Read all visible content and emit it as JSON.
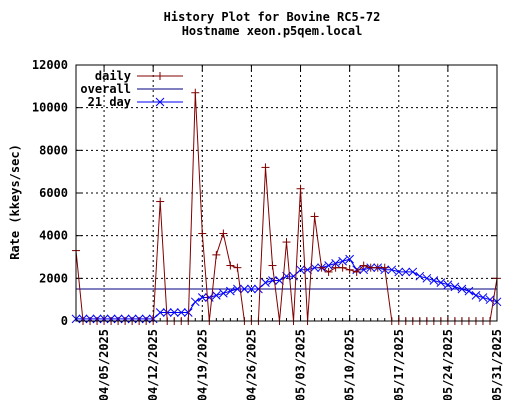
{
  "chart_data": {
    "type": "line",
    "title": "History Plot for Bovine RC5-72",
    "subtitle": "Hostname xeon.p5qem.local",
    "ylabel": "Rate (kkeys/sec)",
    "xlabel": "",
    "ylim": [
      0,
      12000
    ],
    "xlim": [
      "2025-04-01",
      "2025-05-31"
    ],
    "x_is_date": true,
    "grid": true,
    "legend_position": "top-left",
    "yticks": [
      0,
      2000,
      4000,
      6000,
      8000,
      10000,
      12000
    ],
    "xticks": [
      "04/05/2025",
      "04/12/2025",
      "04/19/2025",
      "04/26/2025",
      "05/03/2025",
      "05/10/2025",
      "05/17/2025",
      "05/24/2025",
      "05/31/2025"
    ],
    "colors": {
      "daily": "#800000",
      "overall": "#000080",
      "avg21": "#0000ff"
    },
    "series": [
      {
        "name": "daily",
        "marker": "plus",
        "x": [
          "2025-04-01",
          "2025-04-02",
          "2025-04-03",
          "2025-04-04",
          "2025-04-05",
          "2025-04-06",
          "2025-04-07",
          "2025-04-08",
          "2025-04-09",
          "2025-04-10",
          "2025-04-11",
          "2025-04-12",
          "2025-04-13",
          "2025-04-14",
          "2025-04-15",
          "2025-04-16",
          "2025-04-17",
          "2025-04-18",
          "2025-04-19",
          "2025-04-20",
          "2025-04-21",
          "2025-04-22",
          "2025-04-23",
          "2025-04-24",
          "2025-04-25",
          "2025-04-26",
          "2025-04-27",
          "2025-04-28",
          "2025-04-29",
          "2025-04-30",
          "2025-05-01",
          "2025-05-02",
          "2025-05-03",
          "2025-05-04",
          "2025-05-05",
          "2025-05-06",
          "2025-05-07",
          "2025-05-08",
          "2025-05-09",
          "2025-05-10",
          "2025-05-11",
          "2025-05-12",
          "2025-05-13",
          "2025-05-14",
          "2025-05-15",
          "2025-05-16",
          "2025-05-17",
          "2025-05-18",
          "2025-05-19",
          "2025-05-20",
          "2025-05-21",
          "2025-05-22",
          "2025-05-23",
          "2025-05-24",
          "2025-05-25",
          "2025-05-26",
          "2025-05-27",
          "2025-05-28",
          "2025-05-29",
          "2025-05-30",
          "2025-05-31"
        ],
        "values": [
          3300,
          0,
          0,
          0,
          0,
          0,
          0,
          0,
          0,
          0,
          0,
          0,
          5600,
          0,
          0,
          0,
          0,
          10700,
          4100,
          0,
          3100,
          4100,
          2600,
          2500,
          0,
          0,
          0,
          7200,
          2600,
          0,
          3700,
          0,
          6200,
          0,
          4900,
          2500,
          2300,
          2500,
          2500,
          2400,
          2300,
          2600,
          2500,
          2500,
          2500,
          0,
          0,
          0,
          0,
          0,
          0,
          0,
          0,
          0,
          0,
          0,
          0,
          0,
          0,
          0,
          2000
        ]
      },
      {
        "name": "overall",
        "marker": "none",
        "x": [
          "2025-04-01",
          "2025-05-31"
        ],
        "values": [
          1500,
          1500
        ]
      },
      {
        "name": "21 day",
        "marker": "x",
        "x": [
          "2025-04-01",
          "2025-04-02",
          "2025-04-03",
          "2025-04-04",
          "2025-04-05",
          "2025-04-06",
          "2025-04-07",
          "2025-04-08",
          "2025-04-09",
          "2025-04-10",
          "2025-04-11",
          "2025-04-12",
          "2025-04-13",
          "2025-04-14",
          "2025-04-15",
          "2025-04-16",
          "2025-04-17",
          "2025-04-18",
          "2025-04-19",
          "2025-04-20",
          "2025-04-21",
          "2025-04-22",
          "2025-04-23",
          "2025-04-24",
          "2025-04-25",
          "2025-04-26",
          "2025-04-27",
          "2025-04-28",
          "2025-04-29",
          "2025-04-30",
          "2025-05-01",
          "2025-05-02",
          "2025-05-03",
          "2025-05-04",
          "2025-05-05",
          "2025-05-06",
          "2025-05-07",
          "2025-05-08",
          "2025-05-09",
          "2025-05-10",
          "2025-05-11",
          "2025-05-12",
          "2025-05-13",
          "2025-05-14",
          "2025-05-15",
          "2025-05-16",
          "2025-05-17",
          "2025-05-18",
          "2025-05-19",
          "2025-05-20",
          "2025-05-21",
          "2025-05-22",
          "2025-05-23",
          "2025-05-24",
          "2025-05-25",
          "2025-05-26",
          "2025-05-27",
          "2025-05-28",
          "2025-05-29",
          "2025-05-30",
          "2025-05-31"
        ],
        "values": [
          100,
          100,
          100,
          100,
          100,
          100,
          100,
          100,
          100,
          100,
          100,
          100,
          400,
          400,
          400,
          400,
          400,
          900,
          1100,
          1100,
          1200,
          1300,
          1400,
          1500,
          1500,
          1500,
          1500,
          1800,
          1900,
          1900,
          2100,
          2100,
          2400,
          2400,
          2500,
          2500,
          2600,
          2700,
          2800,
          2900,
          2400,
          2400,
          2500,
          2500,
          2400,
          2400,
          2300,
          2300,
          2300,
          2100,
          2000,
          1900,
          1800,
          1700,
          1600,
          1500,
          1400,
          1200,
          1100,
          1000,
          900
        ]
      }
    ]
  }
}
